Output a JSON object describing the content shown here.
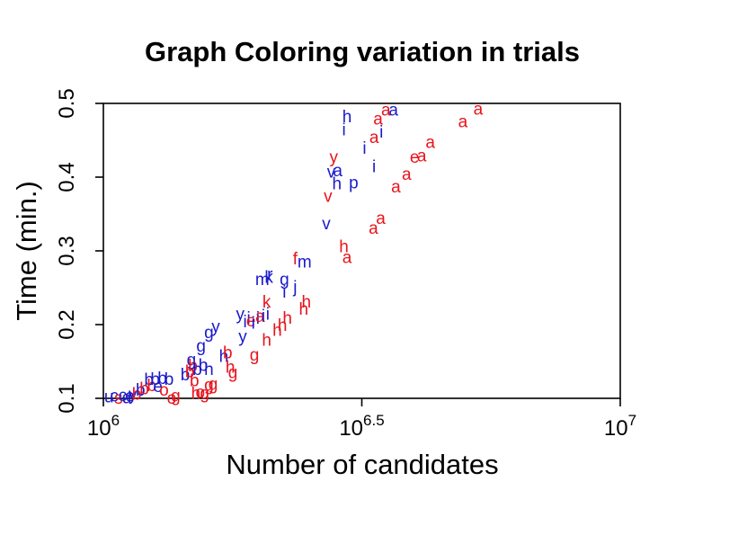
{
  "chart_data": {
    "type": "scatter",
    "title": "Graph Coloring variation in trials",
    "xlabel": "Number of candidates",
    "ylabel": "Time (min.)",
    "x_scale": "log10",
    "xlim": [
      1000000,
      10000000
    ],
    "ylim": [
      0.1,
      0.5
    ],
    "x_ticks": [
      {
        "base": "10",
        "exp": "6"
      },
      {
        "base": "10",
        "exp": "6.5"
      },
      {
        "base": "10",
        "exp": "7"
      }
    ],
    "y_ticks": [
      "0.1",
      "0.2",
      "0.3",
      "0.4",
      "0.5"
    ],
    "grid": false,
    "legend": "none",
    "colors": {
      "red": "#e8141c",
      "blue": "#1a1acc"
    },
    "points": [
      {
        "label": "u",
        "x": 1025000,
        "y": 0.103,
        "color": "blue"
      },
      {
        "label": "c",
        "x": 1050000,
        "y": 0.104,
        "color": "blue"
      },
      {
        "label": "s",
        "x": 1070000,
        "y": 0.101,
        "color": "red"
      },
      {
        "label": "c",
        "x": 1090000,
        "y": 0.105,
        "color": "blue"
      },
      {
        "label": "d",
        "x": 1110000,
        "y": 0.102,
        "color": "blue"
      },
      {
        "label": "e",
        "x": 1125000,
        "y": 0.104,
        "color": "blue"
      },
      {
        "label": "y",
        "x": 1140000,
        "y": 0.106,
        "color": "blue"
      },
      {
        "label": "b",
        "x": 1160000,
        "y": 0.107,
        "color": "red"
      },
      {
        "label": "b",
        "x": 1180000,
        "y": 0.112,
        "color": "blue"
      },
      {
        "label": "b",
        "x": 1200000,
        "y": 0.114,
        "color": "red"
      },
      {
        "label": "b",
        "x": 1225000,
        "y": 0.126,
        "color": "blue"
      },
      {
        "label": "b",
        "x": 1240000,
        "y": 0.118,
        "color": "red"
      },
      {
        "label": "b",
        "x": 1260000,
        "y": 0.127,
        "color": "blue"
      },
      {
        "label": "e",
        "x": 1275000,
        "y": 0.117,
        "color": "blue"
      },
      {
        "label": "b",
        "x": 1300000,
        "y": 0.128,
        "color": "blue"
      },
      {
        "label": "o",
        "x": 1310000,
        "y": 0.112,
        "color": "red"
      },
      {
        "label": "b",
        "x": 1340000,
        "y": 0.127,
        "color": "blue"
      },
      {
        "label": "o",
        "x": 1355000,
        "y": 0.101,
        "color": "red"
      },
      {
        "label": "g",
        "x": 1380000,
        "y": 0.104,
        "color": "red"
      },
      {
        "label": "b",
        "x": 1440000,
        "y": 0.133,
        "color": "blue"
      },
      {
        "label": "b",
        "x": 1470000,
        "y": 0.137,
        "color": "red"
      },
      {
        "label": "g",
        "x": 1480000,
        "y": 0.153,
        "color": "blue"
      },
      {
        "label": "b",
        "x": 1490000,
        "y": 0.145,
        "color": "red"
      },
      {
        "label": "b",
        "x": 1500000,
        "y": 0.125,
        "color": "red"
      },
      {
        "label": "h",
        "x": 1510000,
        "y": 0.108,
        "color": "red"
      },
      {
        "label": "b",
        "x": 1520000,
        "y": 0.14,
        "color": "blue"
      },
      {
        "label": "o",
        "x": 1540000,
        "y": 0.109,
        "color": "red"
      },
      {
        "label": "g",
        "x": 1545000,
        "y": 0.172,
        "color": "blue"
      },
      {
        "label": "b",
        "x": 1560000,
        "y": 0.146,
        "color": "blue"
      },
      {
        "label": "g",
        "x": 1570000,
        "y": 0.108,
        "color": "red"
      },
      {
        "label": "h",
        "x": 1600000,
        "y": 0.14,
        "color": "blue"
      },
      {
        "label": "g",
        "x": 1600000,
        "y": 0.119,
        "color": "red"
      },
      {
        "label": "g",
        "x": 1630000,
        "y": 0.12,
        "color": "red"
      },
      {
        "label": "g",
        "x": 1600000,
        "y": 0.19,
        "color": "blue"
      },
      {
        "label": "y",
        "x": 1650000,
        "y": 0.198,
        "color": "blue"
      },
      {
        "label": "h",
        "x": 1710000,
        "y": 0.158,
        "color": "blue"
      },
      {
        "label": "b",
        "x": 1740000,
        "y": 0.163,
        "color": "red"
      },
      {
        "label": "h",
        "x": 1760000,
        "y": 0.143,
        "color": "red"
      },
      {
        "label": "g",
        "x": 1780000,
        "y": 0.136,
        "color": "red"
      },
      {
        "label": "y",
        "x": 1840000,
        "y": 0.215,
        "color": "blue"
      },
      {
        "label": "y",
        "x": 1860000,
        "y": 0.185,
        "color": "blue"
      },
      {
        "label": "i",
        "x": 1880000,
        "y": 0.205,
        "color": "blue"
      },
      {
        "label": "i",
        "x": 1910000,
        "y": 0.21,
        "color": "blue"
      },
      {
        "label": "e",
        "x": 1930000,
        "y": 0.206,
        "color": "red"
      },
      {
        "label": "i",
        "x": 1950000,
        "y": 0.203,
        "color": "blue"
      },
      {
        "label": "g",
        "x": 1960000,
        "y": 0.16,
        "color": "red"
      },
      {
        "label": "i",
        "x": 1990000,
        "y": 0.21,
        "color": "blue"
      },
      {
        "label": "a",
        "x": 2010000,
        "y": 0.212,
        "color": "red"
      },
      {
        "label": "i",
        "x": 2040000,
        "y": 0.213,
        "color": "blue"
      },
      {
        "label": "m",
        "x": 2030000,
        "y": 0.262,
        "color": "blue"
      },
      {
        "label": "k",
        "x": 2070000,
        "y": 0.232,
        "color": "red"
      },
      {
        "label": "h",
        "x": 2070000,
        "y": 0.18,
        "color": "red"
      },
      {
        "label": "i",
        "x": 2080000,
        "y": 0.215,
        "color": "blue"
      },
      {
        "label": "r",
        "x": 2100000,
        "y": 0.269,
        "color": "blue"
      },
      {
        "label": "k",
        "x": 2090000,
        "y": 0.265,
        "color": "blue"
      },
      {
        "label": "h",
        "x": 2170000,
        "y": 0.193,
        "color": "red"
      },
      {
        "label": "h",
        "x": 2220000,
        "y": 0.2,
        "color": "red"
      },
      {
        "label": "h",
        "x": 2270000,
        "y": 0.21,
        "color": "red"
      },
      {
        "label": "g",
        "x": 2240000,
        "y": 0.262,
        "color": "blue"
      },
      {
        "label": "i",
        "x": 2240000,
        "y": 0.245,
        "color": "blue"
      },
      {
        "label": "j",
        "x": 2350000,
        "y": 0.252,
        "color": "blue"
      },
      {
        "label": "f",
        "x": 2350000,
        "y": 0.29,
        "color": "red"
      },
      {
        "label": "h",
        "x": 2440000,
        "y": 0.222,
        "color": "red"
      },
      {
        "label": "h",
        "x": 2470000,
        "y": 0.232,
        "color": "red"
      },
      {
        "label": "m",
        "x": 2450000,
        "y": 0.286,
        "color": "blue"
      },
      {
        "label": "v",
        "x": 2700000,
        "y": 0.338,
        "color": "blue"
      },
      {
        "label": "v",
        "x": 2720000,
        "y": 0.375,
        "color": "red"
      },
      {
        "label": "v",
        "x": 2760000,
        "y": 0.408,
        "color": "blue"
      },
      {
        "label": "y",
        "x": 2790000,
        "y": 0.428,
        "color": "red"
      },
      {
        "label": "a",
        "x": 2840000,
        "y": 0.41,
        "color": "blue"
      },
      {
        "label": "h",
        "x": 2830000,
        "y": 0.392,
        "color": "blue"
      },
      {
        "label": "i",
        "x": 2920000,
        "y": 0.465,
        "color": "blue"
      },
      {
        "label": "h",
        "x": 2960000,
        "y": 0.483,
        "color": "blue"
      },
      {
        "label": "h",
        "x": 2920000,
        "y": 0.307,
        "color": "red"
      },
      {
        "label": "a",
        "x": 2960000,
        "y": 0.292,
        "color": "red"
      },
      {
        "label": "p",
        "x": 3050000,
        "y": 0.393,
        "color": "blue"
      },
      {
        "label": "i",
        "x": 3200000,
        "y": 0.44,
        "color": "blue"
      },
      {
        "label": "a",
        "x": 3340000,
        "y": 0.455,
        "color": "red"
      },
      {
        "label": "i",
        "x": 3340000,
        "y": 0.415,
        "color": "blue"
      },
      {
        "label": "a",
        "x": 3400000,
        "y": 0.48,
        "color": "red"
      },
      {
        "label": "i",
        "x": 3450000,
        "y": 0.462,
        "color": "blue"
      },
      {
        "label": "a",
        "x": 3520000,
        "y": 0.492,
        "color": "red"
      },
      {
        "label": "a",
        "x": 3640000,
        "y": 0.492,
        "color": "blue"
      },
      {
        "label": "a",
        "x": 3330000,
        "y": 0.332,
        "color": "red"
      },
      {
        "label": "a",
        "x": 3440000,
        "y": 0.345,
        "color": "red"
      },
      {
        "label": "a",
        "x": 3680000,
        "y": 0.388,
        "color": "red"
      },
      {
        "label": "a",
        "x": 3860000,
        "y": 0.405,
        "color": "red"
      },
      {
        "label": "e",
        "x": 4000000,
        "y": 0.428,
        "color": "red"
      },
      {
        "label": "a",
        "x": 4130000,
        "y": 0.43,
        "color": "red"
      },
      {
        "label": "a",
        "x": 4290000,
        "y": 0.448,
        "color": "red"
      },
      {
        "label": "a",
        "x": 4960000,
        "y": 0.476,
        "color": "red"
      },
      {
        "label": "a",
        "x": 5310000,
        "y": 0.493,
        "color": "red"
      }
    ]
  }
}
